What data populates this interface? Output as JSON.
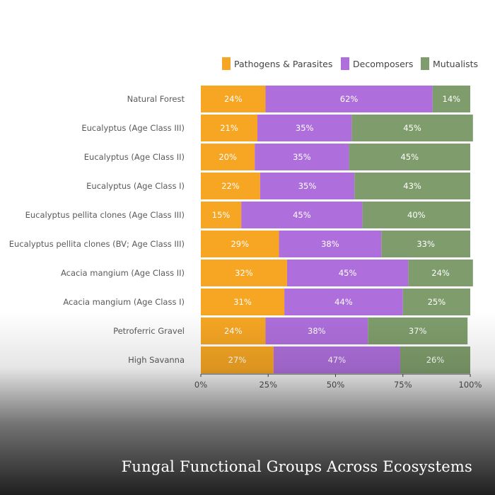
{
  "caption": "Fungal Functional Groups Across Ecosystems",
  "chart_data": {
    "type": "bar",
    "orientation": "horizontal",
    "stacked": true,
    "title": "",
    "xlabel": "",
    "ylabel": "",
    "xlim": [
      0,
      100
    ],
    "x_ticks": [
      "0%",
      "25%",
      "50%",
      "75%",
      "100%"
    ],
    "grid": false,
    "legend_position": "top-right",
    "categories": [
      "Natural Forest",
      "Eucalyptus (Age Class III)",
      "Eucalyptus (Age Class II)",
      "Eucalyptus (Age Class I)",
      "Eucalyptus pellita clones (Age Class III)",
      "Eucalyptus pellita clones (BV; Age Class III)",
      "Acacia mangium (Age Class II)",
      "Acacia mangium (Age Class I)",
      "Petroferric Gravel",
      "High Savanna"
    ],
    "series": [
      {
        "name": "Pathogens & Parasites",
        "color": "#f6a623",
        "values": [
          24,
          21,
          20,
          22,
          15,
          29,
          32,
          31,
          24,
          27
        ]
      },
      {
        "name": "Decomposers",
        "color": "#ae6fdc",
        "values": [
          62,
          35,
          35,
          35,
          45,
          38,
          45,
          44,
          38,
          47
        ]
      },
      {
        "name": "Mutualists",
        "color": "#7f9d6c",
        "values": [
          14,
          45,
          45,
          43,
          40,
          33,
          24,
          25,
          37,
          26
        ]
      }
    ]
  }
}
